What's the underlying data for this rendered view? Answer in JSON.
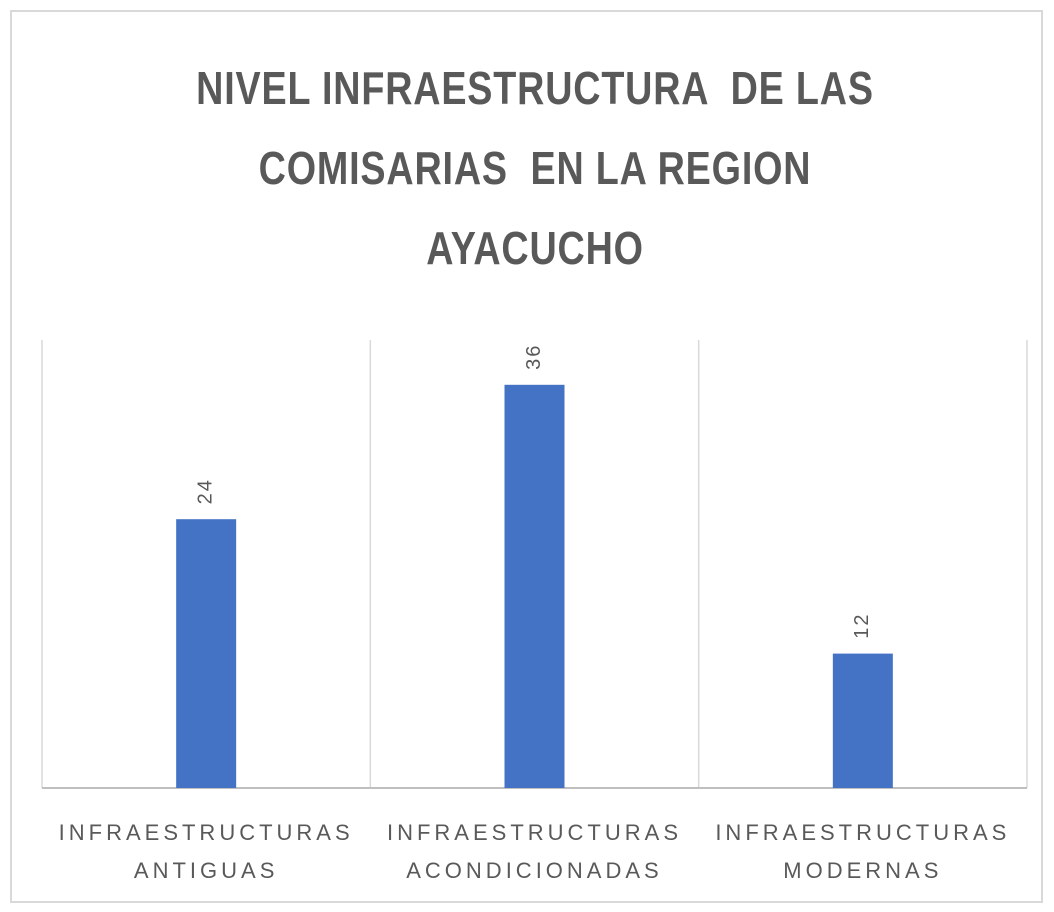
{
  "chart_data": {
    "type": "bar",
    "title": "NIVEL INFRAESTRUCTURA  DE LAS COMISARIAS  EN LA REGION AYACUCHO",
    "categories": [
      "INFRAESTRUCTURAS ANTIGUAS",
      "INFRAESTRUCTURAS ACONDICIONADAS",
      "INFRAESTRUCTURAS MODERNAS"
    ],
    "values": [
      24,
      36,
      12
    ],
    "color": "#4472c4",
    "ylim": [
      0,
      40
    ],
    "data_labels": true
  }
}
